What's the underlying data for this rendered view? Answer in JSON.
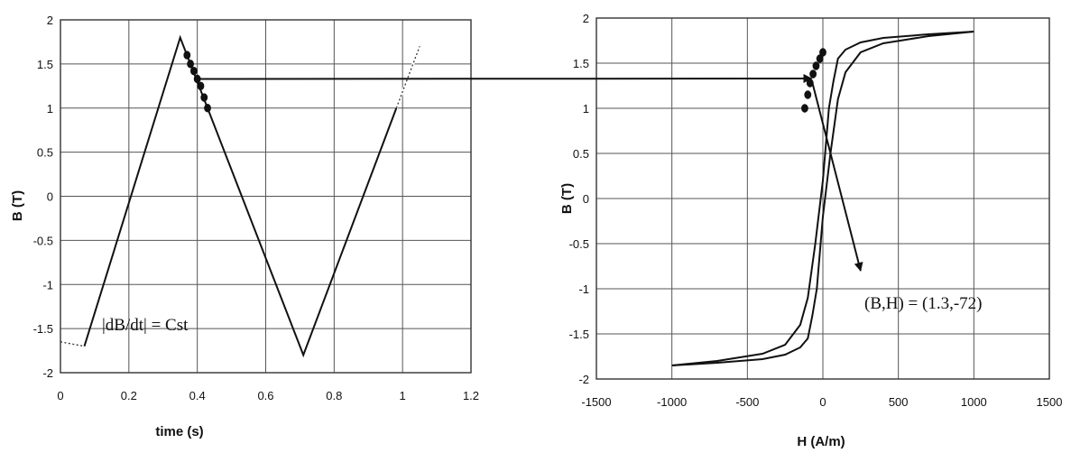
{
  "chart_data": [
    {
      "type": "line",
      "xlabel": "time (s)",
      "ylabel": "B  (T)",
      "xlim": [
        0,
        1.2
      ],
      "ylim": [
        -2,
        2
      ],
      "xticks": [
        0,
        0.2,
        0.4,
        0.6,
        0.8,
        1,
        1.2
      ],
      "yticks": [
        -2,
        -1.5,
        -1,
        -0.5,
        0,
        0.5,
        1,
        1.5,
        2
      ],
      "xtick_labels": [
        "0",
        "0.2",
        "0.4",
        "0.6",
        "0.8",
        "1",
        "1.2"
      ],
      "ytick_labels": [
        "-2",
        "-1.5",
        "-1",
        "-0.5",
        "0",
        "0.5",
        "1",
        "1.5",
        "2"
      ],
      "grid": true,
      "series": [
        {
          "style": "solid",
          "x": [
            0.07,
            0.35,
            0.71,
            1.05
          ],
          "y": [
            -1.7,
            1.8,
            -1.8,
            1.7
          ]
        },
        {
          "style": "dotted",
          "x": [
            0.0,
            0.07
          ],
          "y": [
            -1.65,
            -1.7
          ]
        },
        {
          "style": "markers",
          "x": [
            0.37,
            0.38,
            0.39,
            0.4,
            0.41,
            0.42,
            0.43
          ],
          "y": [
            1.6,
            1.5,
            1.42,
            1.33,
            1.25,
            1.12,
            1.0
          ]
        }
      ],
      "annotations": [
        {
          "text": "|dB/dt| = Cst",
          "x": 0.15,
          "y": -1.42
        }
      ]
    },
    {
      "type": "line",
      "xlabel": "H (A/m)",
      "ylabel": "B  (T)",
      "xlim": [
        -1500,
        1500
      ],
      "ylim": [
        -2,
        2
      ],
      "xticks": [
        -1500,
        -1000,
        -500,
        0,
        500,
        1000,
        1500
      ],
      "yticks": [
        -2,
        -1.5,
        -1,
        -0.5,
        0,
        0.5,
        1,
        1.5,
        2
      ],
      "xtick_labels": [
        "-1500",
        "-1000",
        "-500",
        "0",
        "500",
        "1000",
        "1500"
      ],
      "ytick_labels": [
        "-2",
        "-1.5",
        "-1",
        "-0.5",
        "0",
        "0.5",
        "1",
        "1.5",
        "2"
      ],
      "grid": true,
      "series": [
        {
          "style": "solid",
          "x": [
            1000,
            700,
            400,
            250,
            150,
            100,
            70,
            40,
            0,
            -50,
            -100,
            -150,
            -250,
            -400,
            -550,
            -700,
            -1000
          ],
          "y": [
            1.85,
            1.82,
            1.78,
            1.73,
            1.65,
            1.55,
            1.3,
            1.0,
            0.2,
            -0.5,
            -1.1,
            -1.4,
            -1.62,
            -1.72,
            -1.76,
            -1.8,
            -1.85
          ]
        },
        {
          "style": "solid",
          "x": [
            -1000,
            -700,
            -400,
            -250,
            -150,
            -100,
            -70,
            -40,
            0,
            50,
            100,
            150,
            250,
            400,
            550,
            700,
            1000
          ],
          "y": [
            -1.85,
            -1.82,
            -1.78,
            -1.73,
            -1.65,
            -1.55,
            -1.3,
            -1.0,
            -0.2,
            0.5,
            1.1,
            1.4,
            1.62,
            1.72,
            1.76,
            1.8,
            1.85
          ]
        },
        {
          "style": "markers",
          "x": [
            0,
            -20,
            -45,
            -65,
            -85,
            -100,
            -120
          ],
          "y": [
            1.62,
            1.55,
            1.47,
            1.38,
            1.28,
            1.15,
            1.0
          ]
        }
      ],
      "annotations": [
        {
          "text": "(B,H) = (1.3,-72)",
          "x": 700,
          "y": -1.12
        }
      ]
    }
  ],
  "connector_arrows": [
    {
      "from_panel": 0,
      "from": [
        0.4,
        1.33
      ],
      "to_panel": 1,
      "to": [
        -75,
        1.33
      ]
    },
    {
      "from_panel": 1,
      "from": [
        -72,
        1.3
      ],
      "to_panel": 1,
      "to": [
        250,
        -0.8
      ]
    }
  ]
}
